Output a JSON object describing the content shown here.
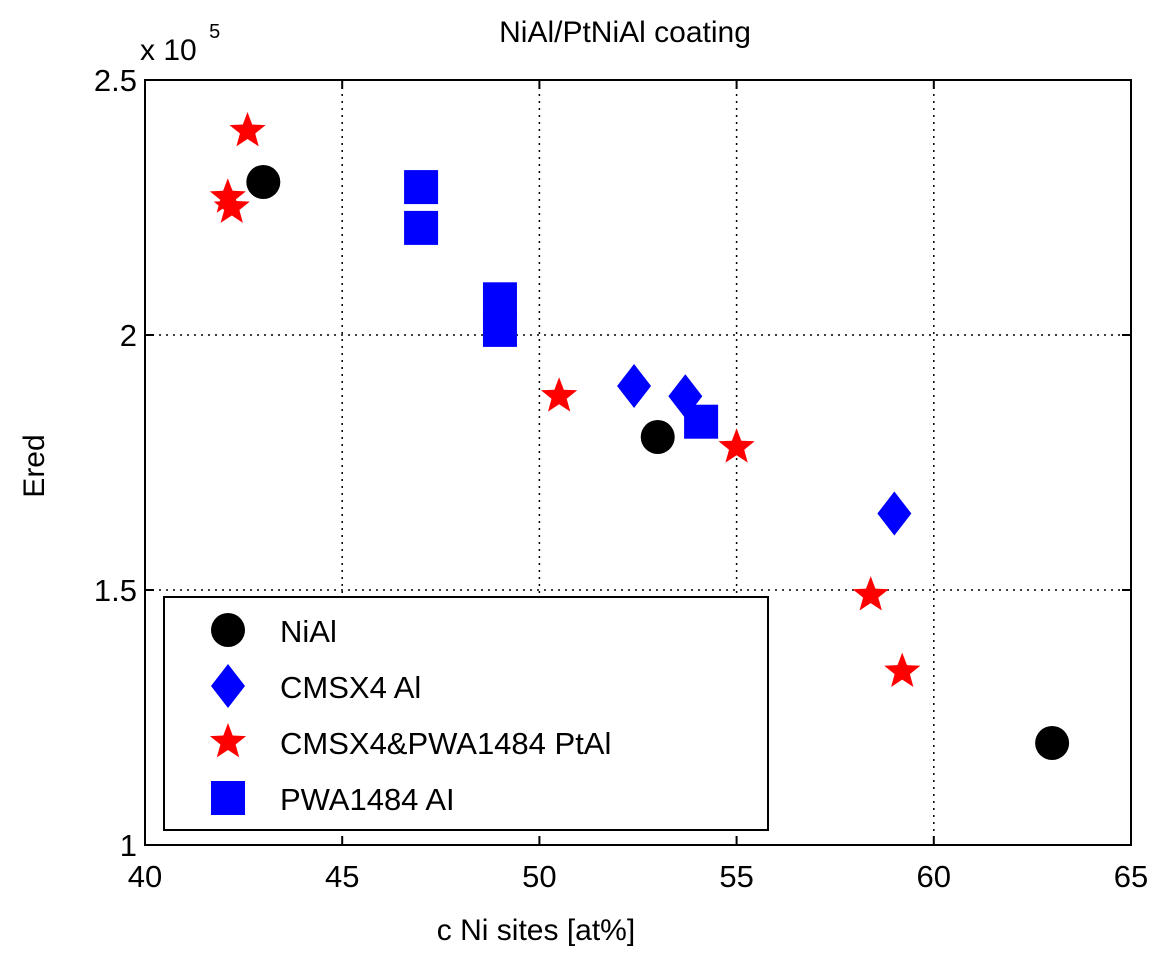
{
  "chart_data": {
    "type": "scatter",
    "title": "NiAl/PtNiAl coating",
    "xlabel": "c Ni sites [at%]",
    "ylabel": "Ered",
    "y_multiplier_base": "x 10",
    "y_multiplier_exp": "5",
    "xlim": [
      40,
      65
    ],
    "ylim": [
      1.0,
      2.5
    ],
    "x_ticks": [
      40,
      45,
      50,
      55,
      60,
      65
    ],
    "y_ticks": [
      1,
      1.5,
      2,
      2.5
    ],
    "x_tick_labels": [
      "40",
      "45",
      "50",
      "55",
      "60",
      "65"
    ],
    "y_tick_labels": [
      "1",
      "1.5",
      "2",
      "2.5"
    ],
    "grid": true,
    "legend_position": "bottom-left",
    "series": [
      {
        "name": "NiAl",
        "marker": "circle",
        "color": "#000000",
        "points": [
          [
            43.0,
            2.3
          ],
          [
            53.0,
            1.8
          ],
          [
            63.0,
            1.2
          ]
        ]
      },
      {
        "name": "CMSX4 Al",
        "marker": "diamond",
        "color": "#0000ff",
        "points": [
          [
            52.4,
            1.9
          ],
          [
            53.7,
            1.88
          ],
          [
            59.0,
            1.65
          ]
        ]
      },
      {
        "name": "CMSX4&PWA1484 PtAl",
        "marker": "star",
        "color": "#ff0000",
        "points": [
          [
            42.6,
            2.4
          ],
          [
            42.1,
            2.27
          ],
          [
            42.2,
            2.25
          ],
          [
            50.5,
            1.88
          ],
          [
            55.0,
            1.78
          ],
          [
            58.4,
            1.49
          ],
          [
            59.2,
            1.34
          ]
        ]
      },
      {
        "name": "PWA1484 AI",
        "marker": "square",
        "color": "#0000ff",
        "points": [
          [
            47.0,
            2.29
          ],
          [
            47.0,
            2.21
          ],
          [
            49.0,
            2.07
          ],
          [
            49.0,
            2.01
          ],
          [
            54.1,
            1.83
          ]
        ]
      }
    ]
  }
}
